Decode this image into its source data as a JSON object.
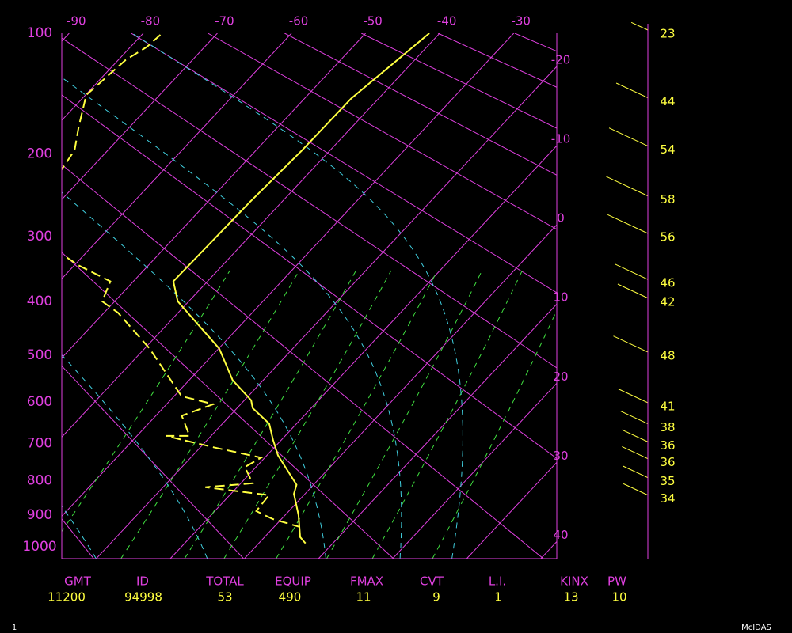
{
  "diagram": {
    "type": "skewt",
    "ylim": [
      100,
      1040
    ],
    "xlim": [
      -91,
      -24.2
    ],
    "pressure_ticks": [
      100,
      200,
      300,
      400,
      500,
      600,
      700,
      800,
      900,
      1000
    ],
    "isotherms": [
      -90,
      -80,
      -70,
      -60,
      -50,
      -40,
      -30,
      -20,
      -10,
      0,
      10,
      20,
      30,
      40
    ],
    "temperature": {
      "color": "#ffff40",
      "pressure": [
        100,
        148,
        196,
        255,
        367,
        400,
        487,
        552,
        596,
        614,
        651,
        690,
        731,
        811,
        837,
        900,
        969,
        989
      ],
      "values": [
        -41.4,
        -43.7,
        -43.8,
        -44.3,
        -44.6,
        -41.5,
        -29.9,
        -24.1,
        -19.1,
        -17.9,
        -13.7,
        -11.2,
        -8.5,
        -2.3,
        -1.5,
        1.8,
        4.8,
        6.3
      ]
    },
    "dewpoint": {
      "color": "#ffff40",
      "pressure": [
        101,
        109,
        118,
        145,
        173,
        196,
        217,
        null,
        330,
        342,
        367,
        400,
        420,
        487,
        587,
        605,
        632,
        681,
        681,
        710,
        737,
        762,
        807,
        818,
        841,
        888,
        912,
        937
      ],
      "values": [
        -77.5,
        -77.8,
        -79.0,
        -79.9,
        -76.9,
        -74.5,
        -73.8,
        null,
        -62.0,
        -59.4,
        -53.1,
        -51.7,
        -48.1,
        -39.3,
        -29.0,
        -23.7,
        -26.5,
        -22.9,
        -26.1,
        -18.2,
        -10.5,
        -11.5,
        -8.4,
        -14.3,
        -4.7,
        -4.4,
        -1.2,
        3.5
      ]
    },
    "winds": {
      "color": "#ffff40",
      "pressure": [
        100,
        150,
        195,
        251,
        300,
        369,
        400,
        500,
        609,
        659,
        704,
        748,
        800,
        850
      ],
      "speed": [
        23,
        44,
        54,
        58,
        56,
        46,
        42,
        48,
        41,
        38,
        36,
        36,
        35,
        34
      ]
    }
  },
  "stats": [
    {
      "label": "GMT",
      "value": "11200"
    },
    {
      "label": "ID",
      "value": "94998"
    },
    {
      "label": "TOTAL",
      "value": "53"
    },
    {
      "label": "EQUIP",
      "value": "490"
    },
    {
      "label": "FMAX",
      "value": "11"
    },
    {
      "label": "CVT",
      "value": "9"
    },
    {
      "label": "L.I.",
      "value": "1"
    },
    {
      "label": "KINX",
      "value": "13"
    },
    {
      "label": "PW",
      "value": "10"
    }
  ],
  "footer": {
    "page": "1",
    "brand": "McIDAS"
  }
}
